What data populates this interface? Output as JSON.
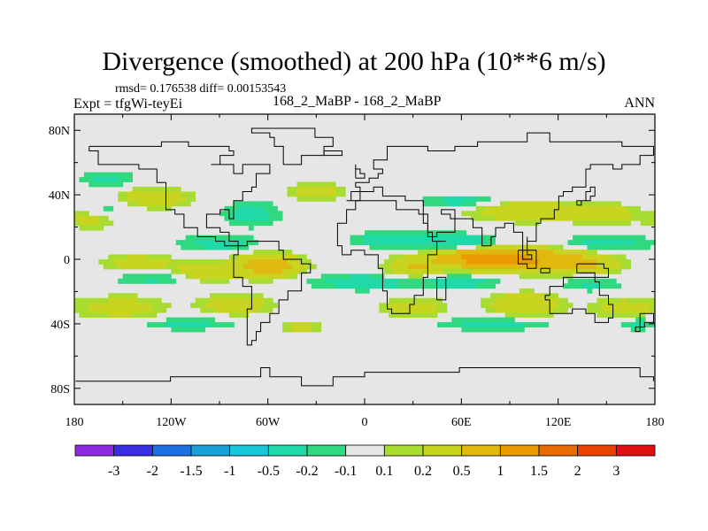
{
  "header": {
    "title": "Divergence (smoothed) at 200 hPa (10**6 m/s)",
    "stats": "rmsd= 0.176538 diff= 0.00153543",
    "expt": "Expt = tfgWi-teyEi",
    "case": "168_2_MaBP - 168_2_MaBP",
    "season": "ANN"
  },
  "colors": {
    "background_field": "#e6e6e6",
    "levels": [
      "#8c2be0",
      "#3a2fe0",
      "#1e6fe0",
      "#1aa0d8",
      "#18c8d8",
      "#20d8a8",
      "#30d880",
      "#e6e6e6",
      "#a8dc30",
      "#c8d420",
      "#e0b810",
      "#e89a00",
      "#e86a00",
      "#e84400",
      "#e01010"
    ]
  },
  "chart_data": {
    "type": "heatmap",
    "title": "Divergence (smoothed) at 200 hPa (10**6 m/s)",
    "x_ticks": [
      "180",
      "120W",
      "60W",
      "0",
      "60E",
      "120E",
      "180"
    ],
    "x_values": [
      -180,
      -120,
      -60,
      0,
      60,
      120,
      180
    ],
    "y_ticks": [
      "80N",
      "40N",
      "0",
      "40S",
      "80S"
    ],
    "y_values": [
      80,
      40,
      0,
      -40,
      -80
    ],
    "xlim": [
      -180,
      180
    ],
    "ylim": [
      -90,
      90
    ],
    "colorbar_labels": [
      "-3",
      "-2",
      "-1.5",
      "-1",
      "-0.5",
      "-0.2",
      "-0.1",
      "0.1",
      "0.2",
      "0.5",
      "1",
      "1.5",
      "2",
      "3"
    ],
    "features": [
      {
        "lon": 90,
        "lat": 0,
        "dlon": 45,
        "dlat": 7,
        "v": 1.0
      },
      {
        "lon": 70,
        "lat": 2,
        "dlon": 20,
        "dlat": 5,
        "v": 0.6
      },
      {
        "lon": 130,
        "lat": -4,
        "dlon": 25,
        "dlat": 6,
        "v": 0.45
      },
      {
        "lon": -60,
        "lat": -4,
        "dlon": 20,
        "dlat": 7,
        "v": 0.8
      },
      {
        "lon": -100,
        "lat": -8,
        "dlon": 18,
        "dlat": 6,
        "v": 0.4
      },
      {
        "lon": -140,
        "lat": -2,
        "dlon": 22,
        "dlat": 5,
        "v": 0.35
      },
      {
        "lon": 30,
        "lat": -6,
        "dlon": 16,
        "dlat": 6,
        "v": 0.45
      },
      {
        "lon": 100,
        "lat": 30,
        "dlon": 32,
        "dlat": 6,
        "v": 0.5
      },
      {
        "lon": 150,
        "lat": 28,
        "dlon": 20,
        "dlat": 6,
        "v": 0.35
      },
      {
        "lon": -130,
        "lat": 38,
        "dlon": 22,
        "dlat": 6,
        "v": 0.4
      },
      {
        "lon": -170,
        "lat": 25,
        "dlon": 15,
        "dlat": 6,
        "v": 0.3
      },
      {
        "lon": -30,
        "lat": 42,
        "dlon": 18,
        "dlat": 5,
        "v": 0.35
      },
      {
        "lon": -150,
        "lat": -30,
        "dlon": 25,
        "dlat": 7,
        "v": 0.35
      },
      {
        "lon": -80,
        "lat": -28,
        "dlon": 22,
        "dlat": 6,
        "v": 0.4
      },
      {
        "lon": 30,
        "lat": -30,
        "dlon": 20,
        "dlat": 6,
        "v": 0.35
      },
      {
        "lon": 100,
        "lat": -28,
        "dlon": 22,
        "dlat": 7,
        "v": 0.5
      },
      {
        "lon": 160,
        "lat": -30,
        "dlon": 18,
        "dlat": 6,
        "v": 0.35
      },
      {
        "lon": -40,
        "lat": -42,
        "dlon": 12,
        "dlat": 4,
        "v": 0.3
      },
      {
        "lon": 20,
        "lat": 12,
        "dlon": 28,
        "dlat": 5,
        "v": -0.35
      },
      {
        "lon": 60,
        "lat": 10,
        "dlon": 22,
        "dlat": 5,
        "v": -0.5
      },
      {
        "lon": 150,
        "lat": 10,
        "dlon": 30,
        "dlat": 5,
        "v": -0.3
      },
      {
        "lon": -90,
        "lat": 10,
        "dlon": 25,
        "dlat": 5,
        "v": -0.3
      },
      {
        "lon": 0,
        "lat": -14,
        "dlon": 35,
        "dlat": 5,
        "v": -0.35
      },
      {
        "lon": 60,
        "lat": -14,
        "dlon": 25,
        "dlat": 5,
        "v": -0.3
      },
      {
        "lon": -130,
        "lat": -12,
        "dlon": 25,
        "dlat": 4,
        "v": -0.25
      },
      {
        "lon": 140,
        "lat": -15,
        "dlon": 20,
        "dlat": 5,
        "v": -0.25
      },
      {
        "lon": -70,
        "lat": 28,
        "dlon": 18,
        "dlat": 8,
        "v": -0.3
      },
      {
        "lon": 60,
        "lat": 36,
        "dlon": 25,
        "dlat": 4,
        "v": -0.3
      },
      {
        "lon": -160,
        "lat": 50,
        "dlon": 18,
        "dlat": 5,
        "v": -0.25
      },
      {
        "lon": 80,
        "lat": -40,
        "dlon": 35,
        "dlat": 4,
        "v": -0.3
      },
      {
        "lon": -110,
        "lat": -40,
        "dlon": 30,
        "dlat": 4,
        "v": -0.25
      },
      {
        "lon": -160,
        "lat": 30,
        "dlon": 15,
        "dlat": 5,
        "v": -0.2
      },
      {
        "lon": 170,
        "lat": -40,
        "dlon": 12,
        "dlat": 4,
        "v": -0.25
      }
    ],
    "coastlines": [
      [
        [
          -170,
          70
        ],
        [
          -160,
          71
        ],
        [
          -140,
          70
        ],
        [
          -125,
          72
        ],
        [
          -110,
          69
        ],
        [
          -95,
          70
        ],
        [
          -85,
          68
        ],
        [
          -80,
          64
        ],
        [
          -90,
          60
        ],
        [
          -95,
          58
        ],
        [
          -80,
          52
        ],
        [
          -75,
          60
        ],
        [
          -65,
          58
        ],
        [
          -60,
          52
        ],
        [
          -66,
          45
        ],
        [
          -70,
          42
        ],
        [
          -76,
          36
        ],
        [
          -80,
          30
        ],
        [
          -80,
          25
        ],
        [
          -84,
          30
        ],
        [
          -90,
          29
        ],
        [
          -97,
          26
        ],
        [
          -97,
          20
        ],
        [
          -90,
          16
        ],
        [
          -84,
          11
        ],
        [
          -78,
          8
        ],
        [
          -82,
          8
        ],
        [
          -86,
          12
        ],
        [
          -92,
          15
        ],
        [
          -105,
          20
        ],
        [
          -112,
          29
        ],
        [
          -117,
          32
        ],
        [
          -122,
          38
        ],
        [
          -124,
          42
        ],
        [
          -124,
          48
        ],
        [
          -130,
          55
        ],
        [
          -140,
          60
        ],
        [
          -150,
          60
        ],
        [
          -160,
          58
        ],
        [
          -165,
          62
        ],
        [
          -165,
          66
        ],
        [
          -170,
          70
        ]
      ],
      [
        [
          -78,
          8
        ],
        [
          -72,
          12
        ],
        [
          -62,
          10
        ],
        [
          -52,
          5
        ],
        [
          -50,
          0
        ],
        [
          -40,
          -3
        ],
        [
          -35,
          -8
        ],
        [
          -38,
          -13
        ],
        [
          -40,
          -20
        ],
        [
          -48,
          -26
        ],
        [
          -52,
          -33
        ],
        [
          -58,
          -38
        ],
        [
          -62,
          -40
        ],
        [
          -65,
          -45
        ],
        [
          -68,
          -50
        ],
        [
          -70,
          -54
        ],
        [
          -74,
          -50
        ],
        [
          -74,
          -40
        ],
        [
          -72,
          -30
        ],
        [
          -70,
          -18
        ],
        [
          -76,
          -12
        ],
        [
          -80,
          -4
        ],
        [
          -80,
          2
        ],
        [
          -78,
          8
        ]
      ],
      [
        [
          -18,
          15
        ],
        [
          -17,
          22
        ],
        [
          -10,
          30
        ],
        [
          -6,
          36
        ],
        [
          10,
          37
        ],
        [
          20,
          32
        ],
        [
          30,
          31
        ],
        [
          33,
          28
        ],
        [
          38,
          18
        ],
        [
          43,
          12
        ],
        [
          51,
          12
        ],
        [
          46,
          3
        ],
        [
          40,
          -5
        ],
        [
          40,
          -12
        ],
        [
          35,
          -22
        ],
        [
          32,
          -28
        ],
        [
          27,
          -34
        ],
        [
          20,
          -35
        ],
        [
          17,
          -30
        ],
        [
          13,
          -20
        ],
        [
          12,
          -7
        ],
        [
          9,
          0
        ],
        [
          8,
          4
        ],
        [
          0,
          5
        ],
        [
          -8,
          4
        ],
        [
          -13,
          8
        ],
        [
          -18,
          15
        ]
      ],
      [
        [
          -10,
          36
        ],
        [
          -9,
          43
        ],
        [
          -2,
          44
        ],
        [
          -5,
          48
        ],
        [
          2,
          51
        ],
        [
          8,
          54
        ],
        [
          10,
          57
        ],
        [
          6,
          62
        ],
        [
          15,
          69
        ],
        [
          25,
          71
        ],
        [
          30,
          70
        ],
        [
          40,
          68
        ],
        [
          55,
          70
        ],
        [
          70,
          73
        ],
        [
          80,
          73
        ],
        [
          100,
          77
        ],
        [
          115,
          73
        ],
        [
          130,
          72
        ],
        [
          140,
          72
        ],
        [
          160,
          70
        ],
        [
          170,
          69
        ],
        [
          180,
          68
        ],
        [
          180,
          65
        ],
        [
          170,
          60
        ],
        [
          160,
          55
        ],
        [
          155,
          60
        ],
        [
          140,
          55
        ],
        [
          138,
          45
        ],
        [
          130,
          42
        ],
        [
          122,
          40
        ],
        [
          121,
          31
        ],
        [
          117,
          24
        ],
        [
          108,
          21
        ],
        [
          106,
          10
        ],
        [
          101,
          14
        ],
        [
          100,
          4
        ],
        [
          104,
          1
        ],
        [
          98,
          8
        ],
        [
          97,
          16
        ],
        [
          92,
          22
        ],
        [
          86,
          20
        ],
        [
          80,
          15
        ],
        [
          77,
          8
        ],
        [
          72,
          20
        ],
        [
          66,
          25
        ],
        [
          57,
          25
        ],
        [
          52,
          28
        ],
        [
          48,
          30
        ],
        [
          57,
          22
        ],
        [
          55,
          17
        ],
        [
          45,
          13
        ],
        [
          43,
          15
        ],
        [
          38,
          22
        ],
        [
          35,
          28
        ],
        [
          36,
          36
        ],
        [
          28,
          36
        ],
        [
          26,
          40
        ],
        [
          18,
          40
        ],
        [
          12,
          44
        ],
        [
          6,
          43
        ],
        [
          3,
          42
        ],
        [
          -2,
          37
        ],
        [
          -10,
          36
        ]
      ],
      [
        [
          114,
          -22
        ],
        [
          113,
          -26
        ],
        [
          115,
          -34
        ],
        [
          123,
          -34
        ],
        [
          130,
          -32
        ],
        [
          138,
          -35
        ],
        [
          143,
          -38
        ],
        [
          150,
          -37
        ],
        [
          153,
          -28
        ],
        [
          150,
          -22
        ],
        [
          145,
          -15
        ],
        [
          142,
          -11
        ],
        [
          136,
          -12
        ],
        [
          130,
          -12
        ],
        [
          122,
          -17
        ],
        [
          114,
          -22
        ]
      ],
      [
        [
          -50,
          60
        ],
        [
          -45,
          60
        ],
        [
          -40,
          65
        ],
        [
          -25,
          70
        ],
        [
          -20,
          76
        ],
        [
          -30,
          82
        ],
        [
          -50,
          82
        ],
        [
          -70,
          78
        ],
        [
          -60,
          75
        ],
        [
          -55,
          70
        ],
        [
          -50,
          60
        ]
      ],
      [
        [
          -180,
          -75
        ],
        [
          -150,
          -77
        ],
        [
          -120,
          -73
        ],
        [
          -90,
          -72
        ],
        [
          -65,
          -66
        ],
        [
          -60,
          -73
        ],
        [
          -40,
          -78
        ],
        [
          -20,
          -73
        ],
        [
          0,
          -70
        ],
        [
          30,
          -69
        ],
        [
          60,
          -67
        ],
        [
          90,
          -66
        ],
        [
          120,
          -66
        ],
        [
          150,
          -68
        ],
        [
          170,
          -72
        ],
        [
          180,
          -75
        ]
      ],
      [
        [
          44,
          -25
        ],
        [
          47,
          -25
        ],
        [
          50,
          -15
        ],
        [
          49,
          -12
        ],
        [
          44,
          -17
        ],
        [
          44,
          -25
        ]
      ],
      [
        [
          131,
          34
        ],
        [
          135,
          35
        ],
        [
          140,
          36
        ],
        [
          141,
          40
        ],
        [
          142,
          45
        ],
        [
          140,
          42
        ],
        [
          137,
          37
        ],
        [
          131,
          34
        ]
      ],
      [
        [
          -5,
          50
        ],
        [
          1,
          51
        ],
        [
          0,
          53
        ],
        [
          -3,
          56
        ],
        [
          -5,
          58
        ],
        [
          -6,
          54
        ],
        [
          -5,
          50
        ]
      ],
      [
        [
          -24,
          64
        ],
        [
          -14,
          65
        ],
        [
          -14,
          66
        ],
        [
          -22,
          66
        ],
        [
          -24,
          64
        ]
      ],
      [
        [
          95,
          5
        ],
        [
          105,
          -6
        ],
        [
          100,
          -2
        ],
        [
          95,
          5
        ]
      ],
      [
        [
          110,
          -7
        ],
        [
          115,
          -8
        ],
        [
          110,
          -8
        ],
        [
          110,
          -7
        ]
      ],
      [
        [
          132,
          -2
        ],
        [
          141,
          -3
        ],
        [
          148,
          -6
        ],
        [
          150,
          -10
        ],
        [
          142,
          -9
        ],
        [
          132,
          -2
        ]
      ],
      [
        [
          172,
          -35
        ],
        [
          178,
          -38
        ],
        [
          174,
          -41
        ],
        [
          168,
          -46
        ],
        [
          172,
          -35
        ]
      ]
    ]
  }
}
